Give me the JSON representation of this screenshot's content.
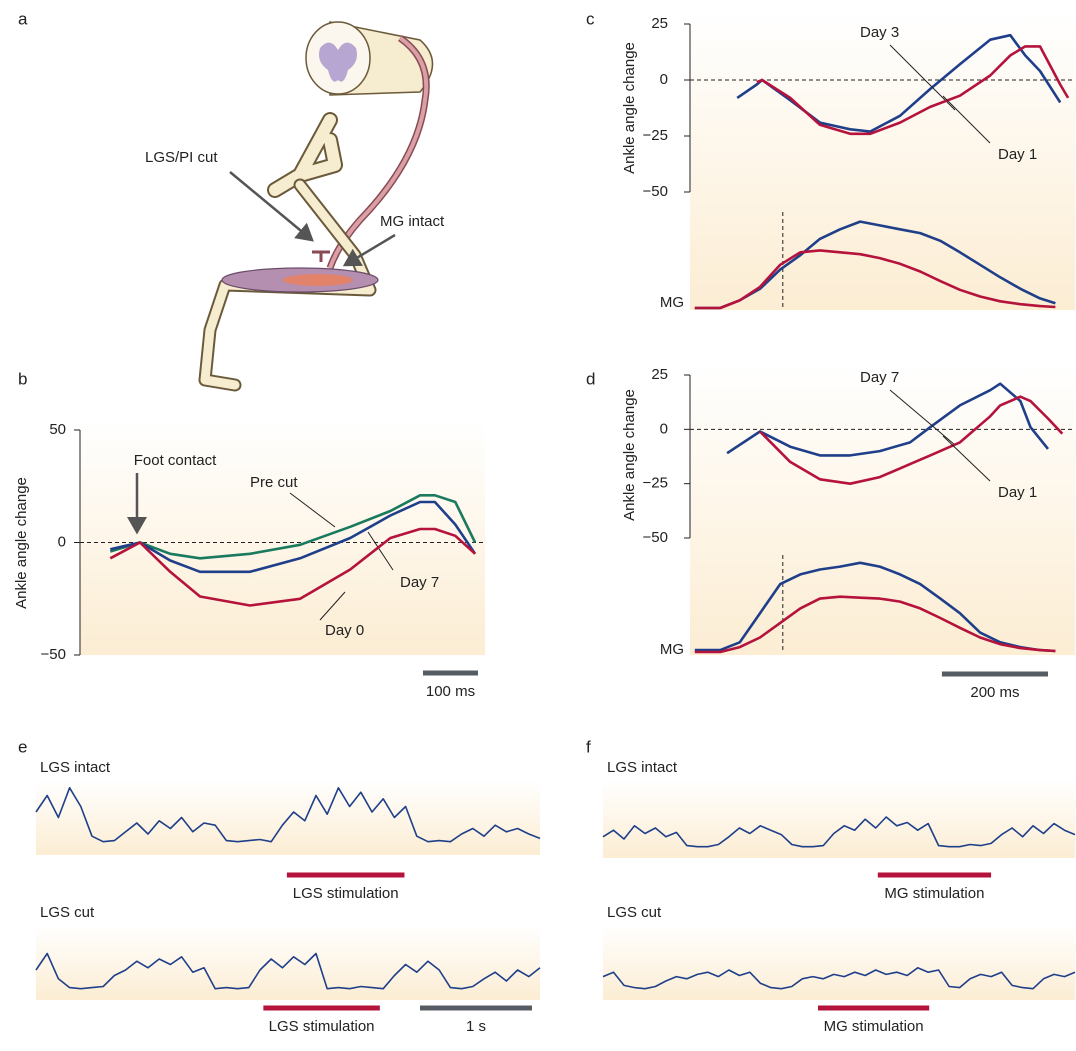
{
  "panel_labels": [
    "a",
    "b",
    "c",
    "d",
    "e",
    "f"
  ],
  "illustration": {
    "labels": [
      "LGS/PI cut",
      "MG intact"
    ]
  },
  "chart_data": [
    {
      "type": "line",
      "y_label": "Ankle angle change",
      "annotation": "Foot contact",
      "x": [
        55,
        109,
        164,
        218,
        309,
        400,
        491,
        564,
        618,
        645,
        682,
        718
      ],
      "xlim": [
        0,
        736
      ],
      "ylim": [
        -50,
        50
      ],
      "yticks": [
        {
          "value": -50,
          "label": "−50"
        },
        0,
        50
      ],
      "hline": 0,
      "series": [
        {
          "name": "Pre cut",
          "color": "#1a7a5e",
          "values": [
            -4,
            0,
            -5,
            -7,
            -5,
            -1,
            7,
            14,
            21,
            21,
            18,
            0
          ]
        },
        {
          "name": "Day 7",
          "color": "#1f3f8a",
          "values": [
            -3,
            0,
            -8,
            -13,
            -13,
            -7,
            2,
            12,
            18,
            18,
            8,
            -5
          ]
        },
        {
          "name": "Day 0",
          "color": "#b5123c",
          "values": [
            -7,
            0,
            -13,
            -24,
            -28,
            -25,
            -12,
            2,
            6,
            6,
            3,
            -5
          ]
        }
      ],
      "scale_bar": {
        "value": 100,
        "label": "100 ms"
      }
    },
    {
      "type": "line",
      "y_label": "Ankle angle change",
      "x": [
        89,
        126,
        136,
        189,
        245,
        302,
        340,
        396,
        453,
        509,
        566,
        604,
        632,
        660,
        698,
        713
      ],
      "xlim": [
        0,
        726
      ],
      "ylim": [
        -50,
        25
      ],
      "yticks": [
        {
          "value": -50,
          "label": "−50"
        },
        {
          "value": -25,
          "label": "−25"
        },
        0,
        25
      ],
      "hline": 0,
      "series": [
        {
          "name": "Day 3",
          "color": "#1f3f8a",
          "values": [
            -8,
            -2,
            0,
            -9,
            -19,
            -22,
            -23,
            -16,
            -4,
            7,
            18,
            20,
            11,
            4,
            -10,
            null
          ]
        },
        {
          "name": "Day 1",
          "color": "#b5123c",
          "values": [
            null,
            -1,
            0,
            -8,
            -20,
            -24,
            -24,
            -19,
            -12,
            -7,
            2,
            11,
            15,
            15,
            -2,
            -8
          ]
        }
      ]
    },
    {
      "type": "line",
      "y_label": "MG",
      "x": [
        9,
        57,
        94,
        132,
        170,
        208,
        245,
        283,
        321,
        358,
        396,
        434,
        472,
        509,
        547,
        585,
        623,
        660,
        689
      ],
      "xlim": [
        0,
        726
      ],
      "ylim": [
        0,
        100
      ],
      "marker": 175,
      "series": [
        {
          "color": "#1f3f8a",
          "values": [
            0,
            0,
            8,
            20,
            40,
            55,
            72,
            82,
            90,
            86,
            82,
            78,
            70,
            58,
            45,
            32,
            20,
            10,
            5
          ]
        },
        {
          "color": "#b5123c",
          "values": [
            0,
            0,
            8,
            22,
            45,
            58,
            60,
            58,
            56,
            52,
            46,
            38,
            28,
            19,
            12,
            7,
            4,
            2,
            1
          ]
        }
      ]
    },
    {
      "type": "line",
      "y_label": "Ankle angle change",
      "x": [
        70,
        132,
        189,
        245,
        302,
        358,
        415,
        453,
        509,
        566,
        585,
        623,
        642,
        675,
        702
      ],
      "xlim": [
        0,
        726
      ],
      "ylim": [
        -50,
        25
      ],
      "yticks": [
        {
          "value": -50,
          "label": "−50"
        },
        {
          "value": -25,
          "label": "−25"
        },
        0,
        25
      ],
      "hline": 0,
      "series": [
        {
          "name": "Day 7",
          "color": "#1f3f8a",
          "values": [
            -11,
            -1,
            -8,
            -12,
            -12,
            -10,
            -6,
            1,
            11,
            18,
            21,
            13,
            1,
            -9,
            null
          ]
        },
        {
          "name": "Day 1",
          "color": "#b5123c",
          "values": [
            null,
            -1,
            -15,
            -23,
            -25,
            -22,
            -16,
            -12,
            -6,
            6,
            11,
            15,
            13,
            5,
            -2
          ]
        }
      ]
    },
    {
      "type": "line",
      "y_label": "MG",
      "x": [
        9,
        57,
        94,
        132,
        170,
        208,
        245,
        283,
        321,
        358,
        396,
        434,
        472,
        509,
        547,
        585,
        623,
        660,
        689
      ],
      "xlim": [
        0,
        726
      ],
      "ylim": [
        0,
        100
      ],
      "marker": 175,
      "series": [
        {
          "color": "#1f3f8a",
          "values": [
            2,
            2,
            10,
            40,
            70,
            80,
            85,
            88,
            92,
            88,
            80,
            70,
            55,
            40,
            20,
            10,
            5,
            2,
            1
          ]
        },
        {
          "color": "#b5123c",
          "values": [
            0,
            0,
            5,
            15,
            30,
            45,
            55,
            57,
            56,
            55,
            52,
            45,
            35,
            25,
            15,
            8,
            4,
            2,
            1
          ]
        }
      ],
      "scale_bar": {
        "value": 200,
        "label": "200 ms"
      }
    },
    {
      "type": "trace",
      "x": [
        0,
        0.1,
        0.2,
        0.3,
        0.4,
        0.5,
        0.6,
        0.7,
        0.8,
        0.9,
        1,
        1.1,
        1.2,
        1.3,
        1.4,
        1.5,
        1.6,
        1.7,
        1.8,
        1.9,
        2,
        2.1,
        2.2,
        2.3,
        2.4,
        2.5,
        2.6,
        2.7,
        2.8,
        2.9,
        3,
        3.1,
        3.2,
        3.3,
        3.4,
        3.5,
        3.6,
        3.7,
        3.8,
        3.9,
        4,
        4.1,
        4.2,
        4.3,
        4.4,
        4.5
      ],
      "xlim": [
        0,
        4.5
      ],
      "series": [
        {
          "name": "LGS intact",
          "color": "#1f3f8a",
          "values": [
            30,
            45,
            25,
            52,
            35,
            8,
            3,
            4,
            12,
            20,
            10,
            22,
            15,
            25,
            12,
            20,
            18,
            4,
            3,
            4,
            5,
            3,
            18,
            30,
            22,
            45,
            28,
            52,
            35,
            48,
            30,
            42,
            25,
            35,
            8,
            3,
            4,
            3,
            10,
            15,
            8,
            18,
            12,
            15,
            10,
            6
          ],
          "stimulation": {
            "label": "LGS stimulation",
            "range": [
              2.24,
              3.29
            ],
            "color": "#b5123c"
          }
        },
        {
          "name": "LGS cut",
          "color": "#1f3f8a",
          "values": [
            20,
            35,
            12,
            4,
            3,
            4,
            5,
            15,
            20,
            28,
            22,
            30,
            25,
            32,
            18,
            22,
            3,
            4,
            3,
            4,
            20,
            30,
            22,
            32,
            25,
            35,
            3,
            4,
            3,
            5,
            4,
            3,
            15,
            25,
            18,
            28,
            20,
            4,
            3,
            5,
            12,
            18,
            10,
            20,
            14,
            22
          ],
          "stimulation": {
            "label": "LGS stimulation",
            "range": [
              2.03,
              3.07
            ],
            "color": "#b5123c"
          }
        }
      ],
      "scale_bar": {
        "value": 1,
        "label": "1 s"
      }
    },
    {
      "type": "trace",
      "x": [
        0,
        0.1,
        0.2,
        0.3,
        0.4,
        0.5,
        0.6,
        0.7,
        0.8,
        0.9,
        1,
        1.1,
        1.2,
        1.3,
        1.4,
        1.5,
        1.6,
        1.7,
        1.8,
        1.9,
        2,
        2.1,
        2.2,
        2.3,
        2.4,
        2.5,
        2.6,
        2.7,
        2.8,
        2.9,
        3,
        3.1,
        3.2,
        3.3,
        3.4,
        3.5,
        3.6,
        3.7,
        3.8,
        3.9,
        4,
        4.1,
        4.2,
        4.3,
        4.4,
        4.5
      ],
      "xlim": [
        0,
        4.5
      ],
      "series": [
        {
          "name": "LGS intact",
          "color": "#1f3f8a",
          "values": [
            12,
            18,
            10,
            22,
            15,
            20,
            12,
            16,
            4,
            3,
            3,
            5,
            12,
            20,
            15,
            22,
            18,
            14,
            5,
            3,
            3,
            4,
            15,
            22,
            18,
            28,
            20,
            30,
            22,
            25,
            18,
            24,
            4,
            3,
            3,
            5,
            4,
            6,
            14,
            20,
            12,
            22,
            15,
            24,
            18,
            14
          ],
          "stimulation": {
            "label": "MG stimulation",
            "range": [
              2.62,
              3.7
            ],
            "color": "#b5123c"
          }
        },
        {
          "name": "LGS cut",
          "color": "#1f3f8a",
          "values": [
            14,
            18,
            6,
            4,
            3,
            5,
            10,
            14,
            12,
            16,
            18,
            14,
            20,
            15,
            18,
            8,
            4,
            3,
            5,
            12,
            14,
            12,
            16,
            14,
            18,
            15,
            20,
            16,
            18,
            15,
            22,
            18,
            20,
            5,
            4,
            12,
            16,
            14,
            18,
            6,
            4,
            3,
            12,
            16,
            14,
            18
          ],
          "stimulation": {
            "label": "MG stimulation",
            "range": [
              2.05,
              3.11
            ],
            "color": "#b5123c"
          }
        }
      ]
    }
  ]
}
